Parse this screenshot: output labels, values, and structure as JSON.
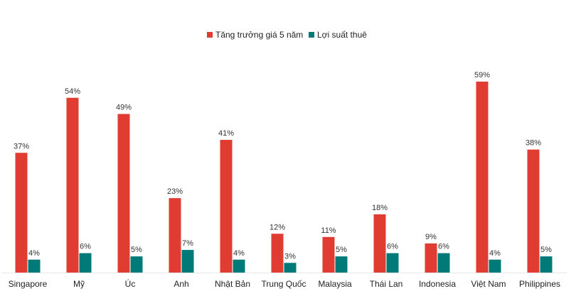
{
  "chart_data": {
    "type": "bar",
    "categories": [
      "Singapore",
      "Mỹ",
      "Úc",
      "Anh",
      "Nhật Bản",
      "Trung Quốc",
      "Malaysia",
      "Thái Lan",
      "Indonesia",
      "Việt Nam",
      "Philippines"
    ],
    "series": [
      {
        "name": "Tăng trưởng giá 5 năm",
        "color": "#e03c31",
        "values": [
          37,
          54,
          49,
          23,
          41,
          12,
          11,
          18,
          9,
          59,
          38
        ],
        "labels": [
          "37%",
          "54%",
          "49%",
          "23%",
          "41%",
          "12%",
          "11%",
          "18%",
          "9%",
          "59%",
          "38%"
        ]
      },
      {
        "name": "Lợi suất thuê",
        "color": "#007a78",
        "values": [
          4,
          6,
          5,
          7,
          4,
          3,
          5,
          6,
          6,
          4,
          5
        ],
        "labels": [
          "4%",
          "6%",
          "5%",
          "7%",
          "4%",
          "3%",
          "5%",
          "6%",
          "6%",
          "4%",
          "5%"
        ]
      }
    ],
    "title": "",
    "xlabel": "",
    "ylabel": "",
    "ylim": [
      0,
      60
    ],
    "grid": false,
    "legend_position": "top-center",
    "unit": "%"
  }
}
